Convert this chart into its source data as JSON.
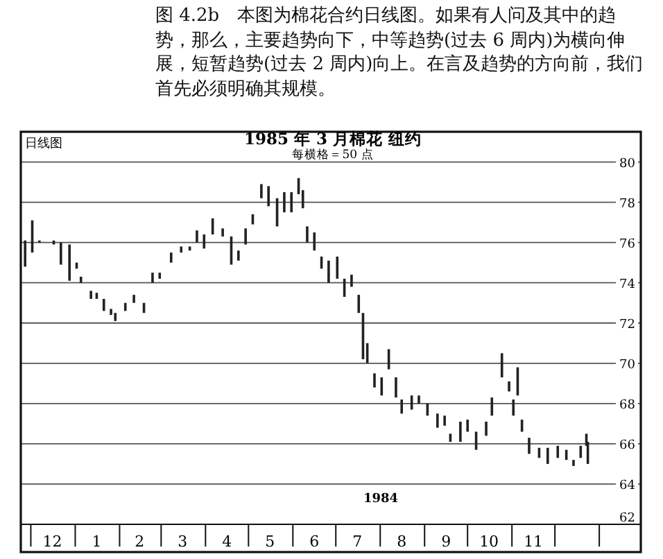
{
  "chart_data": {
    "type": "bar",
    "title": "1985 年 3 月棉花 纽约",
    "subtitle": "每横格＝50 点",
    "annotations": [
      "图 4.2b　本图为棉花合约日线图。如果有人问及其中的趋势，那么，主要趋势向下，中等趋势(过去 6 周内)为横向伸展，短暂趋势(过去 2 周内)向上。在言及趋势的方向前，我们首先必须明确其规模。",
      "日线图",
      "1984"
    ],
    "x": [
      "1983-11-27",
      "1983-12-02",
      "1983-12-07",
      "1983-12-17",
      "1983-12-22",
      "1983-12-28",
      "1984-01-02",
      "1984-01-05",
      "1984-01-12",
      "1984-01-16",
      "1984-01-21",
      "1984-01-26",
      "1984-01-29",
      "1984-02-05",
      "1984-02-11",
      "1984-02-18",
      "1984-02-24",
      "1984-02-29",
      "1984-03-08",
      "1984-03-15",
      "1984-03-21",
      "1984-03-26",
      "1984-03-31",
      "1984-04-06",
      "1984-04-13",
      "1984-04-19",
      "1984-04-24",
      "1984-04-29",
      "1984-05-04",
      "1984-05-10",
      "1984-05-15",
      "1984-05-21",
      "1984-05-26",
      "1984-05-31",
      "1984-06-05",
      "1984-06-08",
      "1984-06-11",
      "1984-06-16",
      "1984-06-21",
      "1984-06-26",
      "1984-07-02",
      "1984-07-07",
      "1984-07-12",
      "1984-07-17",
      "1984-07-20",
      "1984-07-23",
      "1984-07-28",
      "1984-08-02",
      "1984-08-07",
      "1984-08-12",
      "1984-08-16",
      "1984-08-23",
      "1984-08-28",
      "1984-09-03",
      "1984-09-10",
      "1984-09-15",
      "1984-09-19",
      "1984-09-26",
      "1984-10-01",
      "1984-10-07",
      "1984-10-14",
      "1984-10-18",
      "1984-10-25",
      "1984-10-30",
      "1984-11-02",
      "1984-11-05",
      "1984-11-08",
      "1984-11-13",
      "1984-11-20",
      "1984-11-26",
      "1984-12-03",
      "1984-12-09",
      "1984-12-14",
      "1984-12-19",
      "1984-12-23",
      "1984-12-24"
    ],
    "base": [
      74.8,
      75.5,
      76.0,
      75.9,
      74.9,
      74.1,
      74.7,
      74.0,
      73.2,
      73.2,
      72.6,
      72.4,
      72.1,
      72.6,
      73.0,
      72.5,
      74.0,
      74.2,
      75.0,
      75.5,
      75.6,
      76.0,
      75.7,
      76.4,
      76.3,
      74.9,
      75.1,
      75.9,
      76.9,
      78.2,
      77.8,
      76.8,
      77.5,
      77.5,
      78.4,
      77.7,
      76.0,
      75.6,
      74.7,
      74.0,
      74.2,
      73.3,
      73.8,
      72.5,
      70.2,
      70.0,
      68.8,
      68.4,
      69.7,
      68.3,
      67.5,
      67.7,
      68.0,
      67.4,
      66.8,
      66.9,
      66.1,
      66.1,
      66.6,
      65.7,
      66.4,
      67.4,
      69.3,
      68.6,
      67.4,
      68.4,
      66.6,
      65.5,
      65.3,
      65.0,
      65.3,
      65.2,
      64.9,
      65.3,
      65.9,
      65.0
    ],
    "values": [
      1.3,
      1.6,
      0.1,
      0.2,
      1.1,
      1.8,
      0.3,
      0.3,
      0.4,
      0.3,
      0.6,
      0.3,
      0.4,
      0.4,
      0.4,
      0.5,
      0.5,
      0.3,
      0.5,
      0.3,
      0.2,
      0.6,
      0.7,
      0.8,
      0.4,
      1.4,
      0.5,
      0.8,
      0.5,
      0.7,
      1.0,
      1.4,
      1.0,
      1.0,
      0.8,
      0.9,
      0.8,
      0.9,
      0.6,
      1.1,
      1.1,
      0.9,
      0.6,
      0.9,
      2.3,
      1.0,
      0.7,
      0.9,
      1.0,
      1.0,
      0.7,
      0.7,
      0.4,
      0.6,
      0.7,
      0.5,
      0.4,
      1.0,
      0.6,
      0.9,
      0.7,
      0.9,
      1.2,
      0.5,
      0.8,
      1.4,
      0.6,
      0.8,
      0.5,
      0.8,
      0.6,
      0.5,
      0.3,
      0.6,
      0.6,
      1.1
    ],
    "color": "#222222",
    "xlim": [
      "1983-11-24",
      "1985-01-30"
    ],
    "xticks": [
      {
        "value": "1983-12-01",
        "label": null
      },
      {
        "value": "1983-12-16",
        "label": "12"
      },
      {
        "value": "1984-01-01",
        "label": null
      },
      {
        "value": "1984-01-16",
        "label": "1"
      },
      {
        "value": "1984-02-01",
        "label": null
      },
      {
        "value": "1984-02-15",
        "label": "2"
      },
      {
        "value": "1984-03-01",
        "label": null
      },
      {
        "value": "1984-03-16",
        "label": "3"
      },
      {
        "value": "1984-04-01",
        "label": null
      },
      {
        "value": "1984-04-16",
        "label": "4"
      },
      {
        "value": "1984-05-01",
        "label": null
      },
      {
        "value": "1984-05-16",
        "label": "5"
      },
      {
        "value": "1984-06-01",
        "label": null
      },
      {
        "value": "1984-06-16",
        "label": "6"
      },
      {
        "value": "1984-07-01",
        "label": null
      },
      {
        "value": "1984-07-16",
        "label": "7"
      },
      {
        "value": "1984-08-01",
        "label": null
      },
      {
        "value": "1984-08-16",
        "label": "8"
      },
      {
        "value": "1984-09-01",
        "label": null
      },
      {
        "value": "1984-09-16",
        "label": "9"
      },
      {
        "value": "1984-10-01",
        "label": null
      },
      {
        "value": "1984-10-16",
        "label": "10"
      },
      {
        "value": "1984-11-01",
        "label": null
      },
      {
        "value": "1984-11-16",
        "label": "11"
      },
      {
        "value": "1984-12-01",
        "label": null
      },
      {
        "value": "1985-01-01",
        "label": null
      }
    ],
    "ylim": [
      62,
      81.5
    ],
    "yticks": [
      62,
      64,
      66,
      68,
      70,
      72,
      74,
      76,
      78,
      80
    ],
    "grid": "y"
  }
}
